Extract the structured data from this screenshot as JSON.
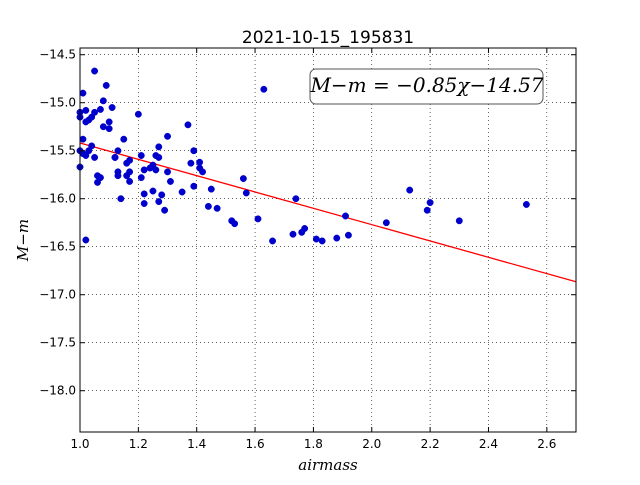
{
  "chart_data": {
    "type": "scatter",
    "title": "2021-10-15_195831",
    "xlabel": "airmass",
    "ylabel": "M−m",
    "xlim": [
      1.0,
      2.7
    ],
    "ylim": [
      -18.43,
      -14.43
    ],
    "y_inverted": true,
    "grid": true,
    "xticks": [
      1.0,
      1.2,
      1.4,
      1.6,
      1.8,
      2.0,
      2.2,
      2.4,
      2.6
    ],
    "yticks": [
      -14.5,
      -15.0,
      -15.5,
      -16.0,
      -16.5,
      -17.0,
      -17.5,
      -18.0
    ],
    "annotation": "M−m = −0.85χ−14.57",
    "fit": {
      "slope": -0.85,
      "intercept": -14.57,
      "color": "#ff0000"
    },
    "point_color": "#0000cc",
    "points": [
      [
        1.0,
        -15.67
      ],
      [
        1.0,
        -15.5
      ],
      [
        1.0,
        -15.15
      ],
      [
        1.0,
        -15.1
      ],
      [
        1.01,
        -15.38
      ],
      [
        1.01,
        -15.53
      ],
      [
        1.01,
        -14.9
      ],
      [
        1.02,
        -15.08
      ],
      [
        1.02,
        -15.2
      ],
      [
        1.02,
        -15.55
      ],
      [
        1.02,
        -16.43
      ],
      [
        1.03,
        -15.5
      ],
      [
        1.03,
        -15.18
      ],
      [
        1.04,
        -15.45
      ],
      [
        1.04,
        -15.15
      ],
      [
        1.05,
        -15.57
      ],
      [
        1.05,
        -15.1
      ],
      [
        1.05,
        -14.67
      ],
      [
        1.06,
        -15.83
      ],
      [
        1.06,
        -15.76
      ],
      [
        1.07,
        -15.78
      ],
      [
        1.07,
        -15.07
      ],
      [
        1.08,
        -15.25
      ],
      [
        1.08,
        -14.98
      ],
      [
        1.09,
        -14.82
      ],
      [
        1.1,
        -15.27
      ],
      [
        1.1,
        -15.2
      ],
      [
        1.11,
        -15.05
      ],
      [
        1.12,
        -15.57
      ],
      [
        1.12,
        -15.57
      ],
      [
        1.13,
        -15.72
      ],
      [
        1.13,
        -15.76
      ],
      [
        1.13,
        -15.5
      ],
      [
        1.14,
        -16.0
      ],
      [
        1.15,
        -15.38
      ],
      [
        1.16,
        -15.76
      ],
      [
        1.16,
        -15.63
      ],
      [
        1.17,
        -15.6
      ],
      [
        1.17,
        -15.82
      ],
      [
        1.17,
        -15.72
      ],
      [
        1.2,
        -15.12
      ],
      [
        1.21,
        -15.78
      ],
      [
        1.21,
        -15.55
      ],
      [
        1.22,
        -15.7
      ],
      [
        1.22,
        -15.95
      ],
      [
        1.22,
        -16.05
      ],
      [
        1.24,
        -15.68
      ],
      [
        1.25,
        -15.92
      ],
      [
        1.25,
        -15.65
      ],
      [
        1.26,
        -15.55
      ],
      [
        1.26,
        -15.7
      ],
      [
        1.27,
        -16.03
      ],
      [
        1.27,
        -15.46
      ],
      [
        1.27,
        -15.57
      ],
      [
        1.28,
        -15.96
      ],
      [
        1.29,
        -16.12
      ],
      [
        1.3,
        -15.35
      ],
      [
        1.3,
        -15.72
      ],
      [
        1.31,
        -15.82
      ],
      [
        1.35,
        -15.93
      ],
      [
        1.37,
        -15.23
      ],
      [
        1.38,
        -15.63
      ],
      [
        1.39,
        -15.5
      ],
      [
        1.39,
        -15.87
      ],
      [
        1.41,
        -15.68
      ],
      [
        1.41,
        -15.62
      ],
      [
        1.42,
        -15.72
      ],
      [
        1.44,
        -16.08
      ],
      [
        1.45,
        -15.9
      ],
      [
        1.47,
        -16.1
      ],
      [
        1.52,
        -16.23
      ],
      [
        1.53,
        -16.26
      ],
      [
        1.56,
        -15.79
      ],
      [
        1.57,
        -15.94
      ],
      [
        1.61,
        -16.21
      ],
      [
        1.63,
        -14.86
      ],
      [
        1.66,
        -16.44
      ],
      [
        1.73,
        -16.37
      ],
      [
        1.74,
        -16.0
      ],
      [
        1.76,
        -16.35
      ],
      [
        1.77,
        -16.31
      ],
      [
        1.81,
        -16.42
      ],
      [
        1.83,
        -16.44
      ],
      [
        1.88,
        -16.41
      ],
      [
        1.91,
        -16.18
      ],
      [
        1.92,
        -16.38
      ],
      [
        2.05,
        -16.25
      ],
      [
        2.13,
        -15.91
      ],
      [
        2.19,
        -16.12
      ],
      [
        2.2,
        -16.04
      ],
      [
        2.3,
        -16.23
      ],
      [
        2.53,
        -16.06
      ]
    ]
  }
}
